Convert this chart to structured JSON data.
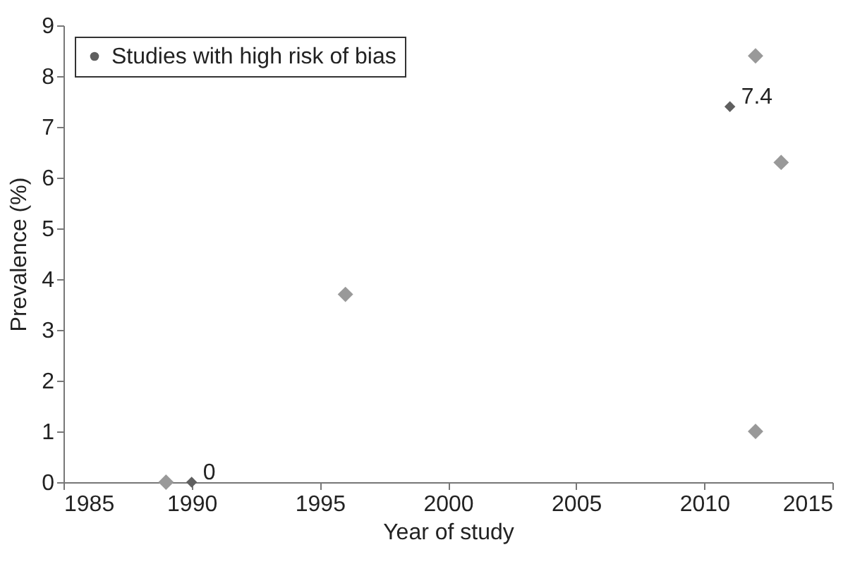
{
  "chart_data": {
    "type": "scatter",
    "xlabel": "Year of study",
    "ylabel": "Prevalence (%)",
    "xlim": [
      1985,
      2015
    ],
    "xticks": [
      1985,
      1990,
      1995,
      2000,
      2005,
      2010,
      2015
    ],
    "ylim": [
      0,
      9
    ],
    "yticks": [
      0,
      1,
      2,
      3,
      4,
      5,
      6,
      7,
      8,
      9
    ],
    "grid": false,
    "legend": "top left",
    "marker": "diamond",
    "series": [
      {
        "name": "Studies with high risk of bias",
        "color": "#5f5f5f",
        "x": [
          1990,
          2011
        ],
        "values": [
          0,
          7.4
        ],
        "value_labels": [
          "0",
          "7.4"
        ]
      },
      {
        "color": "#999999",
        "x": [
          1989,
          1996,
          2012,
          2013,
          2012
        ],
        "values": [
          0,
          3.7,
          8.4,
          6.3,
          1.0
        ]
      }
    ]
  }
}
